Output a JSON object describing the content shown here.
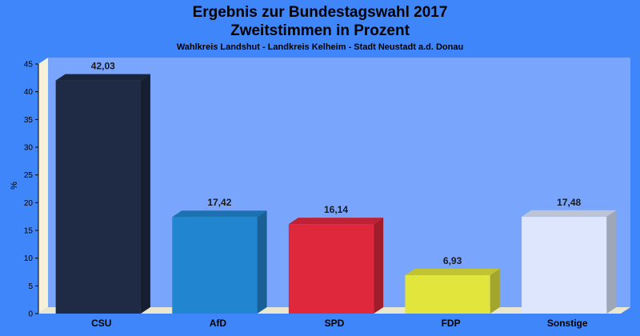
{
  "chart_data": {
    "type": "bar",
    "title": [
      "Ergebnis zur Bundestagswahl 2017",
      "Zweitstimmen in Prozent"
    ],
    "subtitle": "Wahlkreis Landshut - Landkreis Kelheim - Stadt Neustadt a.d. Donau",
    "ylabel": "%",
    "xlabel": "",
    "ylim": [
      0,
      45
    ],
    "yticks": [
      0,
      5,
      10,
      15,
      20,
      25,
      30,
      35,
      40,
      45
    ],
    "grid": false,
    "categories": [
      "CSU",
      "AfD",
      "SPD",
      "FDP",
      "Sonstige"
    ],
    "values": [
      42.03,
      17.42,
      16.14,
      6.93,
      17.48
    ],
    "value_labels": [
      "42,03",
      "17,42",
      "16,14",
      "6,93",
      "17,48"
    ],
    "colors": [
      "#1f2a44",
      "#2185cf",
      "#e0283d",
      "#e2e63c",
      "#dde6fc"
    ]
  }
}
